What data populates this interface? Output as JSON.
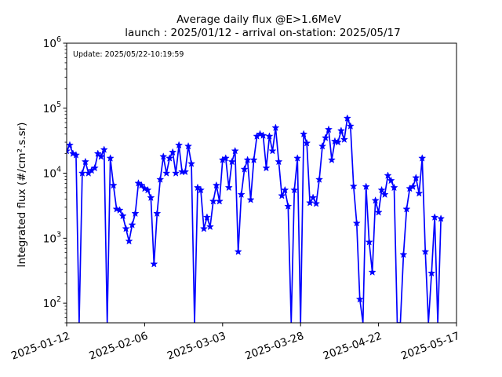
{
  "chart_data": {
    "type": "line",
    "title": "Average daily flux @E>1.6MeV",
    "subtitle": "launch : 2025/01/12 - arrival on-station: 2025/05/17",
    "ylabel": "Integrated flux (#/cm².s.sr)",
    "xlabel": "",
    "annotation": "Update: 2025/05/22-10:19:59",
    "y_scale": "log",
    "ylim": [
      50,
      1000000
    ],
    "xlim": [
      "2025-01-12",
      "2025-05-17"
    ],
    "x_ticks": [
      "2025-01-12",
      "2025-02-06",
      "2025-03-03",
      "2025-03-28",
      "2025-04-22",
      "2025-05-17"
    ],
    "y_ticks": [
      {
        "value": 100,
        "base": "10",
        "exp": "2"
      },
      {
        "value": 1000,
        "base": "10",
        "exp": "3"
      },
      {
        "value": 10000,
        "base": "10",
        "exp": "4"
      },
      {
        "value": 100000,
        "base": "10",
        "exp": "5"
      },
      {
        "value": 1000000,
        "base": "10",
        "exp": "6"
      }
    ],
    "grid": false,
    "line_color": "#0000ff",
    "marker": "star",
    "series": [
      {
        "points": [
          {
            "x": "2025-01-12",
            "y": 22000
          },
          {
            "x": "2025-01-13",
            "y": 27000
          },
          {
            "x": "2025-01-14",
            "y": 20000
          },
          {
            "x": "2025-01-15",
            "y": 19000
          },
          {
            "x": "2025-01-16",
            "y": 50
          },
          {
            "x": "2025-01-17",
            "y": 10000
          },
          {
            "x": "2025-01-18",
            "y": 15000
          },
          {
            "x": "2025-01-19",
            "y": 10000
          },
          {
            "x": "2025-01-20",
            "y": 11000
          },
          {
            "x": "2025-01-21",
            "y": 12000
          },
          {
            "x": "2025-01-22",
            "y": 20000
          },
          {
            "x": "2025-01-23",
            "y": 18000
          },
          {
            "x": "2025-01-24",
            "y": 23000
          },
          {
            "x": "2025-01-25",
            "y": 50
          },
          {
            "x": "2025-01-26",
            "y": 17000
          },
          {
            "x": "2025-01-27",
            "y": 6500
          },
          {
            "x": "2025-01-28",
            "y": 2800
          },
          {
            "x": "2025-01-29",
            "y": 2700
          },
          {
            "x": "2025-01-30",
            "y": 2200
          },
          {
            "x": "2025-01-31",
            "y": 1400
          },
          {
            "x": "2025-02-01",
            "y": 900
          },
          {
            "x": "2025-02-02",
            "y": 1600
          },
          {
            "x": "2025-02-03",
            "y": 2400
          },
          {
            "x": "2025-02-04",
            "y": 7000
          },
          {
            "x": "2025-02-05",
            "y": 6500
          },
          {
            "x": "2025-02-06",
            "y": 5800
          },
          {
            "x": "2025-02-07",
            "y": 5500
          },
          {
            "x": "2025-02-08",
            "y": 4200
          },
          {
            "x": "2025-02-09",
            "y": 400
          },
          {
            "x": "2025-02-10",
            "y": 2400
          },
          {
            "x": "2025-02-11",
            "y": 8000
          },
          {
            "x": "2025-02-12",
            "y": 18000
          },
          {
            "x": "2025-02-13",
            "y": 10000
          },
          {
            "x": "2025-02-14",
            "y": 17000
          },
          {
            "x": "2025-02-15",
            "y": 21000
          },
          {
            "x": "2025-02-16",
            "y": 10000
          },
          {
            "x": "2025-02-17",
            "y": 27000
          },
          {
            "x": "2025-02-18",
            "y": 10500
          },
          {
            "x": "2025-02-19",
            "y": 10500
          },
          {
            "x": "2025-02-20",
            "y": 26000
          },
          {
            "x": "2025-02-21",
            "y": 14000
          },
          {
            "x": "2025-02-22",
            "y": 50
          },
          {
            "x": "2025-02-23",
            "y": 6000
          },
          {
            "x": "2025-02-24",
            "y": 5500
          },
          {
            "x": "2025-02-25",
            "y": 1400
          },
          {
            "x": "2025-02-26",
            "y": 2100
          },
          {
            "x": "2025-02-27",
            "y": 1500
          },
          {
            "x": "2025-02-28",
            "y": 3700
          },
          {
            "x": "2025-03-01",
            "y": 6500
          },
          {
            "x": "2025-03-02",
            "y": 3700
          },
          {
            "x": "2025-03-03",
            "y": 16000
          },
          {
            "x": "2025-03-04",
            "y": 17000
          },
          {
            "x": "2025-03-05",
            "y": 6000
          },
          {
            "x": "2025-03-06",
            "y": 15000
          },
          {
            "x": "2025-03-07",
            "y": 22000
          },
          {
            "x": "2025-03-08",
            "y": 620
          },
          {
            "x": "2025-03-09",
            "y": 4700
          },
          {
            "x": "2025-03-10",
            "y": 11500
          },
          {
            "x": "2025-03-11",
            "y": 16000
          },
          {
            "x": "2025-03-12",
            "y": 3900
          },
          {
            "x": "2025-03-13",
            "y": 16000
          },
          {
            "x": "2025-03-14",
            "y": 37000
          },
          {
            "x": "2025-03-15",
            "y": 40000
          },
          {
            "x": "2025-03-16",
            "y": 38000
          },
          {
            "x": "2025-03-17",
            "y": 12000
          },
          {
            "x": "2025-03-18",
            "y": 37000
          },
          {
            "x": "2025-03-19",
            "y": 22000
          },
          {
            "x": "2025-03-20",
            "y": 50000
          },
          {
            "x": "2025-03-21",
            "y": 15000
          },
          {
            "x": "2025-03-22",
            "y": 4500
          },
          {
            "x": "2025-03-23",
            "y": 5500
          },
          {
            "x": "2025-03-24",
            "y": 3100
          },
          {
            "x": "2025-03-25",
            "y": 50
          },
          {
            "x": "2025-03-26",
            "y": 5500
          },
          {
            "x": "2025-03-27",
            "y": 17000
          },
          {
            "x": "2025-03-28",
            "y": 50
          },
          {
            "x": "2025-03-29",
            "y": 40000
          },
          {
            "x": "2025-03-30",
            "y": 29000
          },
          {
            "x": "2025-03-31",
            "y": 3500
          },
          {
            "x": "2025-04-01",
            "y": 4200
          },
          {
            "x": "2025-04-02",
            "y": 3400
          },
          {
            "x": "2025-04-03",
            "y": 8000
          },
          {
            "x": "2025-04-04",
            "y": 26000
          },
          {
            "x": "2025-04-05",
            "y": 35000
          },
          {
            "x": "2025-04-06",
            "y": 47000
          },
          {
            "x": "2025-04-07",
            "y": 16000
          },
          {
            "x": "2025-04-08",
            "y": 31000
          },
          {
            "x": "2025-04-09",
            "y": 30000
          },
          {
            "x": "2025-04-10",
            "y": 45000
          },
          {
            "x": "2025-04-11",
            "y": 33000
          },
          {
            "x": "2025-04-12",
            "y": 70000
          },
          {
            "x": "2025-04-13",
            "y": 53000
          },
          {
            "x": "2025-04-14",
            "y": 6300
          },
          {
            "x": "2025-04-15",
            "y": 1700
          },
          {
            "x": "2025-04-16",
            "y": 115
          },
          {
            "x": "2025-04-17",
            "y": 50
          },
          {
            "x": "2025-04-18",
            "y": 6200
          },
          {
            "x": "2025-04-19",
            "y": 870
          },
          {
            "x": "2025-04-20",
            "y": 300
          },
          {
            "x": "2025-04-21",
            "y": 3800
          },
          {
            "x": "2025-04-22",
            "y": 2500
          },
          {
            "x": "2025-04-23",
            "y": 5500
          },
          {
            "x": "2025-04-24",
            "y": 4700
          },
          {
            "x": "2025-04-25",
            "y": 9200
          },
          {
            "x": "2025-04-26",
            "y": 7700
          },
          {
            "x": "2025-04-27",
            "y": 6000
          },
          {
            "x": "2025-04-28",
            "y": 50
          },
          {
            "x": "2025-04-29",
            "y": 50
          },
          {
            "x": "2025-04-30",
            "y": 560
          },
          {
            "x": "2025-05-01",
            "y": 2800
          },
          {
            "x": "2025-05-02",
            "y": 5800
          },
          {
            "x": "2025-05-03",
            "y": 6200
          },
          {
            "x": "2025-05-04",
            "y": 8500
          },
          {
            "x": "2025-05-05",
            "y": 4900
          },
          {
            "x": "2025-05-06",
            "y": 17000
          },
          {
            "x": "2025-05-07",
            "y": 620
          },
          {
            "x": "2025-05-08",
            "y": 50
          },
          {
            "x": "2025-05-09",
            "y": 290
          },
          {
            "x": "2025-05-10",
            "y": 2100
          },
          {
            "x": "2025-05-11",
            "y": 50
          },
          {
            "x": "2025-05-12",
            "y": 2000
          }
        ]
      }
    ]
  }
}
